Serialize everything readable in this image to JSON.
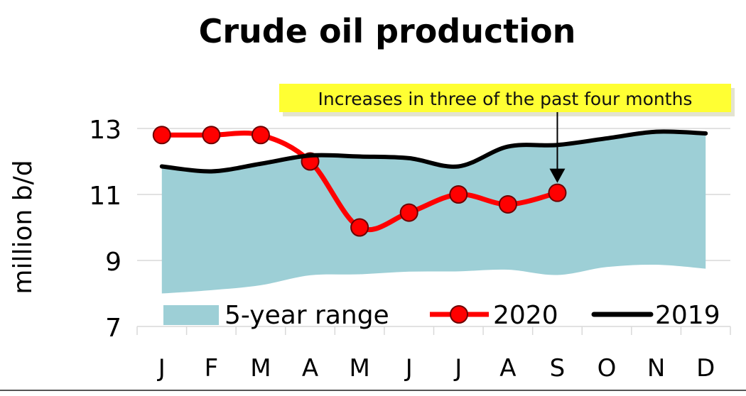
{
  "chart_data": {
    "type": "line",
    "title": "Crude oil production",
    "ylabel": "million b/d",
    "xlabel": "",
    "categories": [
      "J",
      "F",
      "M",
      "A",
      "M",
      "J",
      "J",
      "A",
      "S",
      "O",
      "N",
      "D"
    ],
    "ylim": [
      7,
      13
    ],
    "yticks": [
      7,
      9,
      11,
      13
    ],
    "grid": true,
    "legend_placement": "bottom",
    "range": {
      "name": "5-year range",
      "color": "#9dcfd6",
      "low": [
        8.0,
        8.1,
        8.25,
        8.55,
        8.58,
        8.66,
        8.67,
        8.72,
        8.56,
        8.8,
        8.87,
        8.75
      ],
      "high": [
        11.8,
        11.65,
        11.9,
        12.15,
        12.12,
        12.08,
        11.82,
        12.45,
        12.5,
        12.68,
        12.88,
        12.83
      ]
    },
    "series": [
      {
        "name": "2020",
        "color": "#ff0000",
        "markers": true,
        "values": [
          12.8,
          12.8,
          12.8,
          12.0,
          10.0,
          10.45,
          11.0,
          10.7,
          11.05,
          null,
          null,
          null
        ]
      },
      {
        "name": "2019",
        "color": "#000000",
        "markers": false,
        "values": [
          11.85,
          11.7,
          11.93,
          12.18,
          12.15,
          12.1,
          11.85,
          12.45,
          12.5,
          12.7,
          12.9,
          12.85
        ]
      }
    ],
    "annotation": {
      "text": "Increases in three of the past four months",
      "target_category_index": 8,
      "background": "#ffff33"
    }
  }
}
